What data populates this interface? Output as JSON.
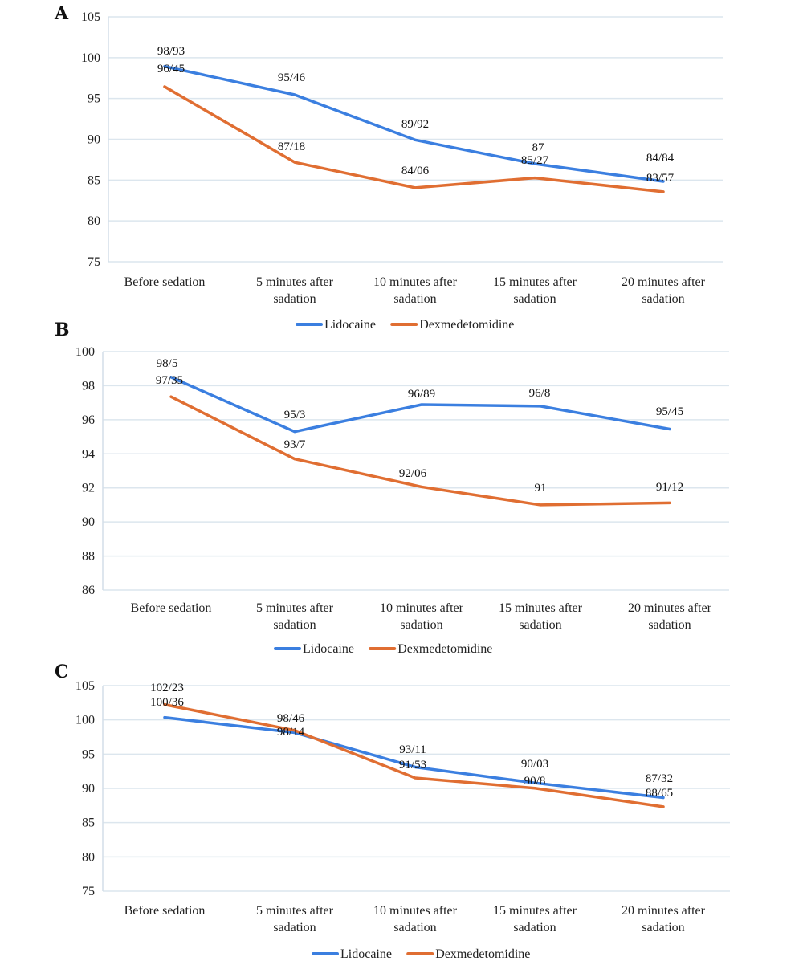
{
  "colors": {
    "lidocaine": "#3b7fe0",
    "dexmedetomidine": "#e06e32"
  },
  "chart_data": [
    {
      "panel": "A",
      "type": "line",
      "categories": [
        [
          "Before sedation"
        ],
        [
          "5 minutes after",
          "sadation"
        ],
        [
          "10 minutes after",
          "sadation"
        ],
        [
          "15 minutes after",
          "sadation"
        ],
        [
          "20 minutes after",
          "sadation"
        ]
      ],
      "ylim": [
        75,
        105
      ],
      "yticks": [
        75,
        80,
        85,
        90,
        95,
        100,
        105
      ],
      "grid": true,
      "legend_position": "bottom-center",
      "series": [
        {
          "name": "Lidocaine",
          "values": [
            98.93,
            95.46,
            89.92,
            87,
            84.84
          ],
          "labels": [
            "98/93",
            "95/46",
            "89/92",
            "87",
            "84/84"
          ]
        },
        {
          "name": "Dexmedetomidine",
          "values": [
            96.45,
            87.18,
            84.06,
            85.27,
            83.57
          ],
          "labels": [
            "96/45",
            "87/18",
            "84/06",
            "85/27",
            "83/57"
          ]
        }
      ]
    },
    {
      "panel": "B",
      "type": "line",
      "categories": [
        [
          "Before sedation"
        ],
        [
          "5 minutes after",
          "sadation"
        ],
        [
          "10 minutes after",
          "sadation"
        ],
        [
          "15 minutes after",
          "sadation"
        ],
        [
          "20 minutes after",
          "sadation"
        ]
      ],
      "ylim": [
        86,
        100
      ],
      "yticks": [
        86,
        88,
        90,
        92,
        94,
        96,
        98,
        100
      ],
      "grid": true,
      "legend_position": "bottom-center",
      "series": [
        {
          "name": "Lidocaine",
          "values": [
            98.5,
            95.3,
            96.89,
            96.8,
            95.45
          ],
          "labels": [
            "98/5",
            "95/3",
            "96/89",
            "96/8",
            "95/45"
          ]
        },
        {
          "name": "Dexmedetomidine",
          "values": [
            97.35,
            93.7,
            92.06,
            91,
            91.12
          ],
          "labels": [
            "97/35",
            "93/7",
            "92/06",
            "91",
            "91/12"
          ]
        }
      ]
    },
    {
      "panel": "C",
      "type": "line",
      "categories": [
        [
          "Before sedation"
        ],
        [
          "5 minutes after",
          "sadation"
        ],
        [
          "10 minutes after",
          "sadation"
        ],
        [
          "15 minutes after",
          "sadation"
        ],
        [
          "20 minutes after",
          "sadation"
        ]
      ],
      "ylim": [
        75,
        105
      ],
      "yticks": [
        75,
        80,
        85,
        90,
        95,
        100,
        105
      ],
      "grid": true,
      "legend_position": "bottom-center",
      "series": [
        {
          "name": "Lidocaine",
          "values": [
            100.36,
            98.14,
            93.11,
            90.8,
            88.65
          ],
          "labels": [
            "100/36",
            "98/14",
            "93/11",
            "90/8",
            "88/65"
          ]
        },
        {
          "name": "Dexmedetomidine",
          "values": [
            102.23,
            98.46,
            91.53,
            90.03,
            87.32
          ],
          "labels": [
            "102/23",
            "98/46",
            "91/53",
            "90/03",
            "87/32"
          ]
        }
      ]
    }
  ]
}
